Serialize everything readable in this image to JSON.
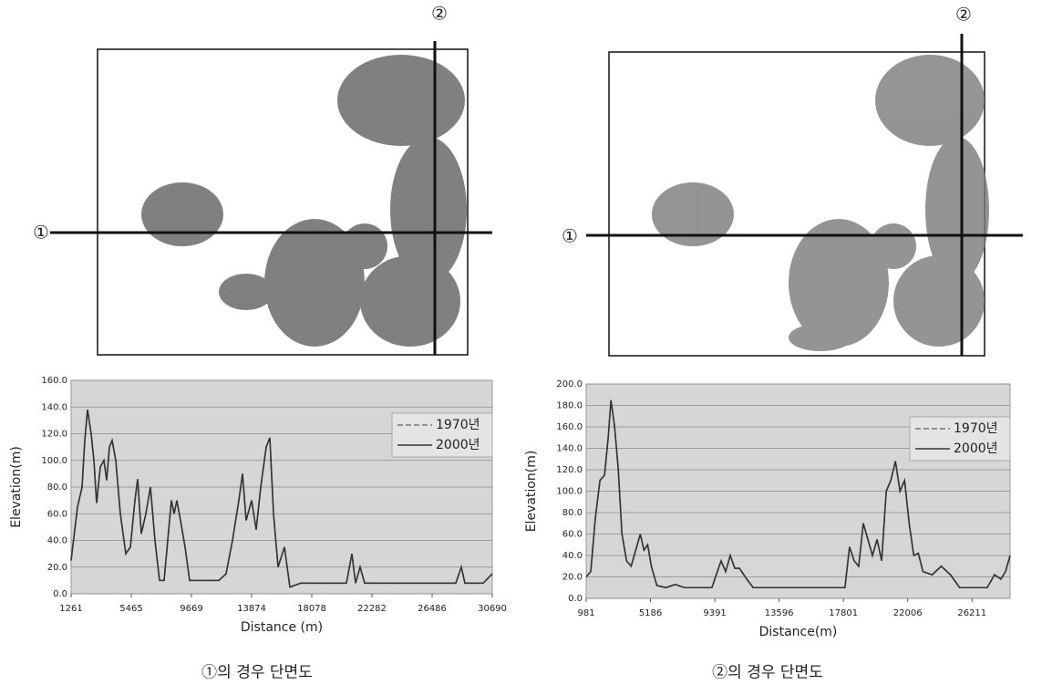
{
  "maps": [
    {
      "labels": [
        "①",
        "②"
      ]
    },
    {
      "labels": [
        "①",
        "②"
      ]
    }
  ],
  "captions": [
    "①의 경우 단면도",
    "②의 경우 단면도"
  ],
  "chart_data": [
    {
      "type": "line",
      "xlabel": "Distance (m)",
      "ylabel": "Elevation(m)",
      "xlim": [
        1261,
        30690
      ],
      "xticks": [
        1261,
        5465,
        9669,
        13874,
        18078,
        22282,
        26486,
        30690
      ],
      "ylim": [
        0,
        160
      ],
      "yticks": [
        {
          "value": 0,
          "label": "0.0"
        },
        {
          "value": 20,
          "label": "20.0"
        },
        {
          "value": 40,
          "label": "40.0"
        },
        {
          "value": 60,
          "label": "60.0"
        },
        {
          "value": 80,
          "label": "80.0"
        },
        {
          "value": 100,
          "label": "100.0"
        },
        {
          "value": 120,
          "label": "120.0"
        },
        {
          "value": 140,
          "label": "140.0"
        },
        {
          "value": 160,
          "label": "160.0"
        }
      ],
      "grid": true,
      "legend": "top-right",
      "x": [
        1261,
        1707,
        2025,
        2217,
        2408,
        2662,
        2854,
        3045,
        3299,
        3554,
        3745,
        3936,
        4128,
        4382,
        4701,
        5083,
        5402,
        5720,
        5911,
        6166,
        6484,
        6803,
        7121,
        7440,
        7758,
        8013,
        8268,
        8459,
        8650,
        8905,
        9224,
        9542,
        9988,
        11580,
        12090,
        12536,
        12982,
        13237,
        13491,
        13874,
        14192,
        14511,
        14893,
        15148,
        15403,
        15721,
        16167,
        16549,
        17313,
        20498,
        20880,
        21135,
        21454,
        21773,
        24957,
        28142,
        28525,
        28779,
        30053,
        30690
      ],
      "series": [
        {
          "name": "1970년",
          "color": "#777777",
          "dash": true,
          "values": [
            25,
            65,
            80,
            115,
            138,
            120,
            100,
            68,
            95,
            100,
            85,
            110,
            115,
            100,
            60,
            30,
            35,
            70,
            86,
            45,
            60,
            80,
            40,
            10,
            10,
            40,
            70,
            60,
            70,
            55,
            35,
            10,
            10,
            10,
            15,
            40,
            70,
            90,
            55,
            70,
            48,
            80,
            110,
            117,
            60,
            20,
            35,
            5,
            8,
            8,
            30,
            8,
            20,
            8,
            8,
            8,
            20,
            8,
            8,
            15
          ]
        },
        {
          "name": "2000년",
          "color": "#333333",
          "dash": false,
          "values": [
            25,
            65,
            80,
            115,
            138,
            120,
            100,
            68,
            95,
            100,
            85,
            110,
            115,
            100,
            60,
            30,
            35,
            70,
            86,
            45,
            60,
            80,
            40,
            10,
            10,
            40,
            70,
            60,
            70,
            55,
            35,
            10,
            10,
            10,
            15,
            40,
            70,
            90,
            55,
            70,
            48,
            80,
            110,
            117,
            60,
            20,
            35,
            5,
            8,
            8,
            30,
            8,
            20,
            8,
            8,
            8,
            20,
            8,
            8,
            15
          ]
        }
      ]
    },
    {
      "type": "line",
      "xlabel": "Distance(m)",
      "ylabel": "Elevation(m)",
      "xlim": [
        981,
        28700
      ],
      "xticks": [
        981,
        5186,
        9391,
        13596,
        17801,
        22006,
        26211
      ],
      "ylim": [
        0,
        200
      ],
      "yticks": [
        {
          "value": 0,
          "label": "0.0"
        },
        {
          "value": 20,
          "label": "20.0"
        },
        {
          "value": 40,
          "label": "40.0"
        },
        {
          "value": 60,
          "label": "60.0"
        },
        {
          "value": 80,
          "label": "80.0"
        },
        {
          "value": 100,
          "label": "100.0"
        },
        {
          "value": 120,
          "label": "120.0"
        },
        {
          "value": 140,
          "label": "140.0"
        },
        {
          "value": 160,
          "label": "160.0"
        },
        {
          "value": 180,
          "label": "180.0"
        },
        {
          "value": 200,
          "label": "200.0"
        }
      ],
      "grid": true,
      "legend": "top-right",
      "x": [
        981,
        1281,
        1581,
        1881,
        2181,
        2421,
        2601,
        2841,
        3081,
        3321,
        3621,
        3921,
        4221,
        4521,
        4761,
        5001,
        5241,
        5601,
        6201,
        6801,
        7401,
        9201,
        9801,
        10101,
        10401,
        10701,
        11001,
        11481,
        11901,
        14001,
        16401,
        17901,
        18201,
        18501,
        18801,
        19101,
        19401,
        19701,
        20001,
        20301,
        20601,
        20901,
        21201,
        21501,
        21801,
        22101,
        22401,
        22701,
        23001,
        23601,
        24201,
        24801,
        25401,
        27201,
        27681,
        28101,
        28401,
        28700
      ],
      "series": [
        {
          "name": "1970년",
          "color": "#777777",
          "dash": true,
          "values": [
            20,
            25,
            75,
            110,
            115,
            150,
            185,
            160,
            120,
            60,
            35,
            30,
            45,
            60,
            45,
            50,
            30,
            12,
            10,
            13,
            10,
            10,
            35,
            25,
            40,
            28,
            28,
            18,
            10,
            10,
            10,
            10,
            48,
            35,
            30,
            70,
            55,
            40,
            55,
            35,
            100,
            110,
            128,
            100,
            110,
            70,
            40,
            42,
            25,
            22,
            30,
            22,
            10,
            10,
            22,
            18,
            25,
            40
          ]
        },
        {
          "name": "2000년",
          "color": "#333333",
          "dash": false,
          "values": [
            20,
            25,
            75,
            110,
            115,
            150,
            185,
            160,
            120,
            60,
            35,
            30,
            45,
            60,
            45,
            50,
            30,
            12,
            10,
            13,
            10,
            10,
            35,
            25,
            40,
            28,
            28,
            18,
            10,
            10,
            10,
            10,
            48,
            35,
            30,
            70,
            55,
            40,
            55,
            35,
            100,
            110,
            128,
            100,
            110,
            70,
            40,
            42,
            25,
            22,
            30,
            22,
            10,
            10,
            22,
            18,
            25,
            40
          ]
        }
      ]
    }
  ]
}
